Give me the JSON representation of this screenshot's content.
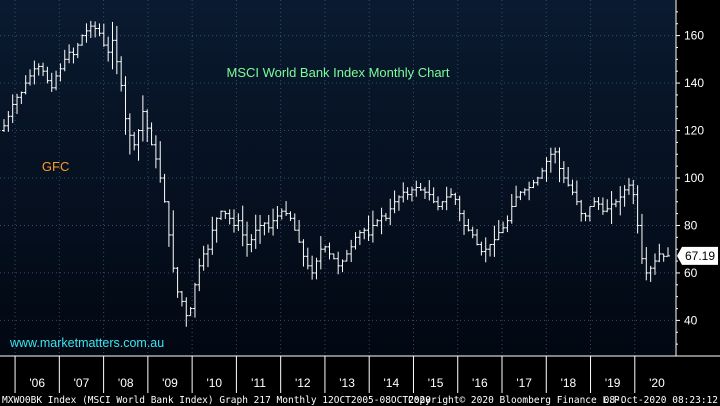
{
  "colors": {
    "background": "#000000",
    "plot_top": "#0A1A30",
    "plot_bottom": "#020812",
    "grid": "#2F4E6E",
    "bars": "#FFFFFF",
    "title": "#7CFC9A",
    "annotation": "#FF9A1F",
    "watermark": "#39E6F2",
    "last_value_box": "#FFFFFF"
  },
  "chart_data": {
    "type": "ohlc",
    "title": "MSCI World Bank Index Monthly Chart",
    "annotations": [
      {
        "text": "GFC",
        "x": "2007-12",
        "y": 105
      }
    ],
    "watermark": "www.marketmatters.com.au",
    "last_value": "67.19",
    "ylim": [
      25,
      175
    ],
    "yticks": [
      40,
      60,
      80,
      100,
      120,
      140,
      160
    ],
    "y_axis_side": "right",
    "grid": true,
    "x_tick_labels": [
      "'06",
      "'07",
      "'08",
      "'09",
      "'10",
      "'11",
      "'12",
      "'13",
      "'14",
      "'15",
      "'16",
      "'17",
      "'18",
      "'19",
      "'20"
    ],
    "x_start": "2005-10",
    "x_end": "2020-10",
    "series_values": [
      122,
      126,
      131,
      134,
      136,
      140,
      143,
      146,
      147,
      145,
      141,
      138,
      143,
      146,
      150,
      153,
      152,
      156,
      160,
      162,
      164,
      163,
      161,
      156,
      153,
      158,
      149,
      139,
      125,
      118,
      114,
      120,
      128,
      121,
      114,
      108,
      100,
      90,
      76,
      62,
      52,
      48,
      42,
      45,
      55,
      63,
      68,
      70,
      78,
      83,
      86,
      85,
      83,
      80,
      82,
      76,
      72,
      74,
      78,
      80,
      81,
      79,
      82,
      84,
      86,
      85,
      83,
      78,
      73,
      67,
      63,
      60,
      65,
      70,
      71,
      68,
      66,
      63,
      65,
      68,
      71,
      75,
      77,
      78,
      76,
      80,
      82,
      84,
      83,
      87,
      90,
      92,
      94,
      93,
      95,
      96,
      95,
      94,
      93,
      90,
      88,
      90,
      92,
      93,
      91,
      85,
      80,
      78,
      76,
      72,
      69,
      70,
      72,
      74,
      77,
      79,
      82,
      88,
      92,
      94,
      95,
      96,
      98,
      100,
      103,
      107,
      110,
      111,
      104,
      100,
      97,
      94,
      90,
      85,
      84,
      88,
      90,
      89,
      86,
      87,
      89,
      90,
      92,
      95,
      97,
      93,
      80,
      66,
      60,
      62,
      65,
      68,
      67,
      67.19
    ]
  },
  "footer": {
    "left": "MXWO0BK Index (MSCI World Bank Index) Graph 217  Monthly 12OCT2005-08OCT2020",
    "center": "Copyright© 2020 Bloomberg Finance L.P.",
    "right": "08-Oct-2020 08:23:12"
  }
}
